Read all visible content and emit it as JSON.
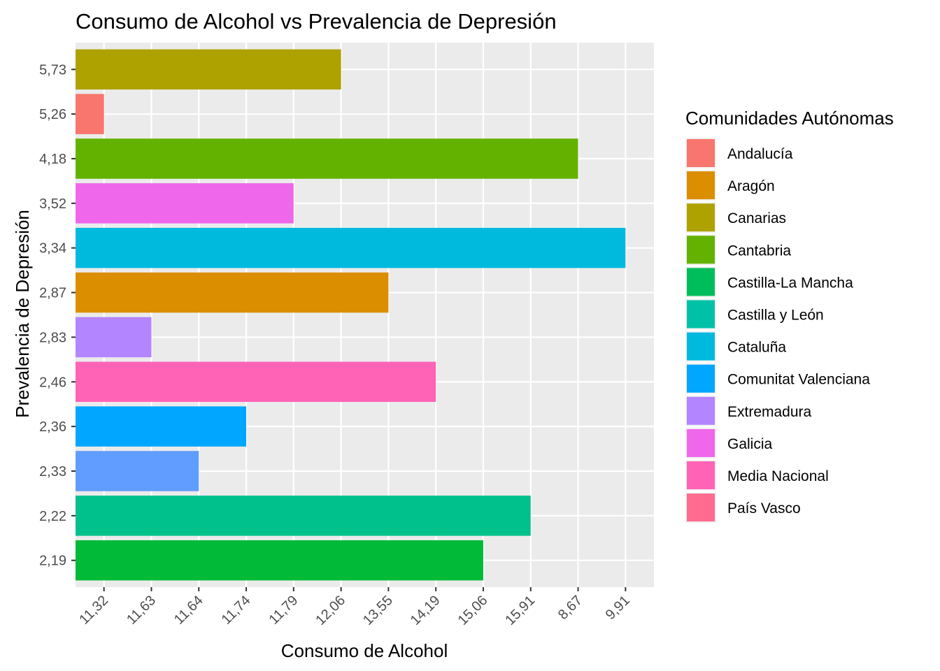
{
  "chart_data": {
    "type": "bar",
    "orientation": "horizontal",
    "title": "Consumo de Alcohol vs Prevalencia de Depresión",
    "xlabel": "Consumo de Alcohol",
    "ylabel": "Prevalencia de Depresión",
    "x_scale": "discrete",
    "x_categories": [
      "11,32",
      "11,63",
      "11,64",
      "11,74",
      "11,79",
      "12,06",
      "13,55",
      "14,19",
      "15,06",
      "15,91",
      "8,67",
      "9,91"
    ],
    "y_categories": [
      "2,19",
      "2,22",
      "2,33",
      "2,36",
      "2,46",
      "2,83",
      "2,87",
      "3,34",
      "3,52",
      "4,18",
      "5,26",
      "5,73"
    ],
    "grid": true,
    "background": "#ebebeb",
    "legend_title": "Comunidades Autónomas",
    "legend_position": "right",
    "legend": [
      {
        "name": "Andalucía",
        "color": "#F8766D"
      },
      {
        "name": "Aragón",
        "color": "#DB8E00"
      },
      {
        "name": "Canarias",
        "color": "#AEA200"
      },
      {
        "name": "Cantabria",
        "color": "#64B200"
      },
      {
        "name": "Castilla-La Mancha",
        "color": "#00BD5C"
      },
      {
        "name": "Castilla y León",
        "color": "#00C1A7"
      },
      {
        "name": "Cataluña",
        "color": "#00BADE"
      },
      {
        "name": "Comunitat Valenciana",
        "color": "#00A6FF"
      },
      {
        "name": "Extremadura",
        "color": "#B385FF"
      },
      {
        "name": "Galicia",
        "color": "#EF67EB"
      },
      {
        "name": "Media Nacional",
        "color": "#FF63B6"
      },
      {
        "name": "País Vasco",
        "color": "#FF6C90"
      }
    ],
    "bars": [
      {
        "y": "5,73",
        "x": "12,06",
        "group": "Canarias",
        "color": "#AEA200"
      },
      {
        "y": "5,26",
        "x": "11,32",
        "group": "Andalucía",
        "color": "#F8766D"
      },
      {
        "y": "4,18",
        "x": "8,67",
        "group": "Cantabria",
        "color": "#64B200"
      },
      {
        "y": "3,52",
        "x": "11,79",
        "group": "Media Nacional",
        "color": "#EF67EB"
      },
      {
        "y": "3,34",
        "x": "9,91",
        "group": "Cataluña",
        "color": "#00BADE"
      },
      {
        "y": "2,87",
        "x": "13,55",
        "group": "Aragón",
        "color": "#DB8E00"
      },
      {
        "y": "2,83",
        "x": "11,63",
        "group": "Galicia",
        "color": "#B385FF"
      },
      {
        "y": "2,46",
        "x": "14,19",
        "group": "País Vasco",
        "color": "#FF63B6"
      },
      {
        "y": "2,36",
        "x": "11,74",
        "group": "Comunitat Valenciana",
        "color": "#00A6FF"
      },
      {
        "y": "2,33",
        "x": "11,64",
        "group": "Extremadura",
        "color": "#619CFF"
      },
      {
        "y": "2,22",
        "x": "15,91",
        "group": "Castilla y León",
        "color": "#00C08B"
      },
      {
        "y": "2,19",
        "x": "15,06",
        "group": "Castilla-La Mancha",
        "color": "#00BA38"
      }
    ]
  }
}
